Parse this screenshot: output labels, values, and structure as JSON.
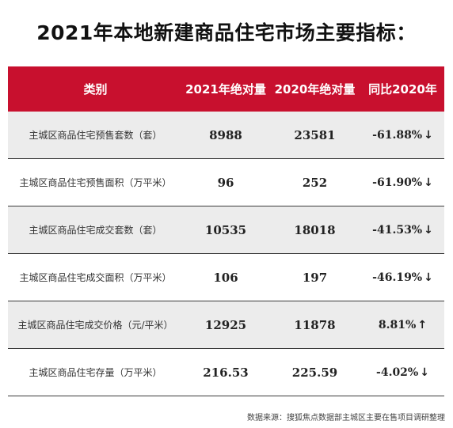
{
  "title": "2021年本地新建商品住宅市场主要指标：",
  "table": {
    "headers": [
      "类别",
      "2021年绝对量",
      "2020年绝对量",
      "同比2020年"
    ],
    "rows": [
      {
        "category": "主城区商品住宅预售套数（套）",
        "v2021": "8988",
        "v2020": "23581",
        "change": "-61.88%",
        "direction": "down",
        "arrow": "↓"
      },
      {
        "category": "主城区商品住宅预售面积（万平米）",
        "v2021": "96",
        "v2020": "252",
        "change": "-61.90%",
        "direction": "down",
        "arrow": "↓"
      },
      {
        "category": "主城区商品住宅成交套数（套）",
        "v2021": "10535",
        "v2020": "18018",
        "change": "-41.53%",
        "direction": "down",
        "arrow": "↓"
      },
      {
        "category": "主城区商品住宅成交面积（万平米）",
        "v2021": "106",
        "v2020": "197",
        "change": "-46.19%",
        "direction": "down",
        "arrow": "↓"
      },
      {
        "category": "主城区商品住宅成交价格（元/平米）",
        "v2021": "12925",
        "v2020": "11878",
        "change": "8.81%",
        "direction": "up",
        "arrow": "↑"
      },
      {
        "category": "主城区商品住宅存量（万平米）",
        "v2021": "216.53",
        "v2020": "225.59",
        "change": "-4.02%",
        "direction": "down",
        "arrow": "↓"
      }
    ]
  },
  "source": "数据来源：搜狐焦点数据部主城区主要在售项目调研整理",
  "colors": {
    "header_bg": "#c8102e",
    "down": "#3daa53",
    "up": "#cc1f1f"
  }
}
